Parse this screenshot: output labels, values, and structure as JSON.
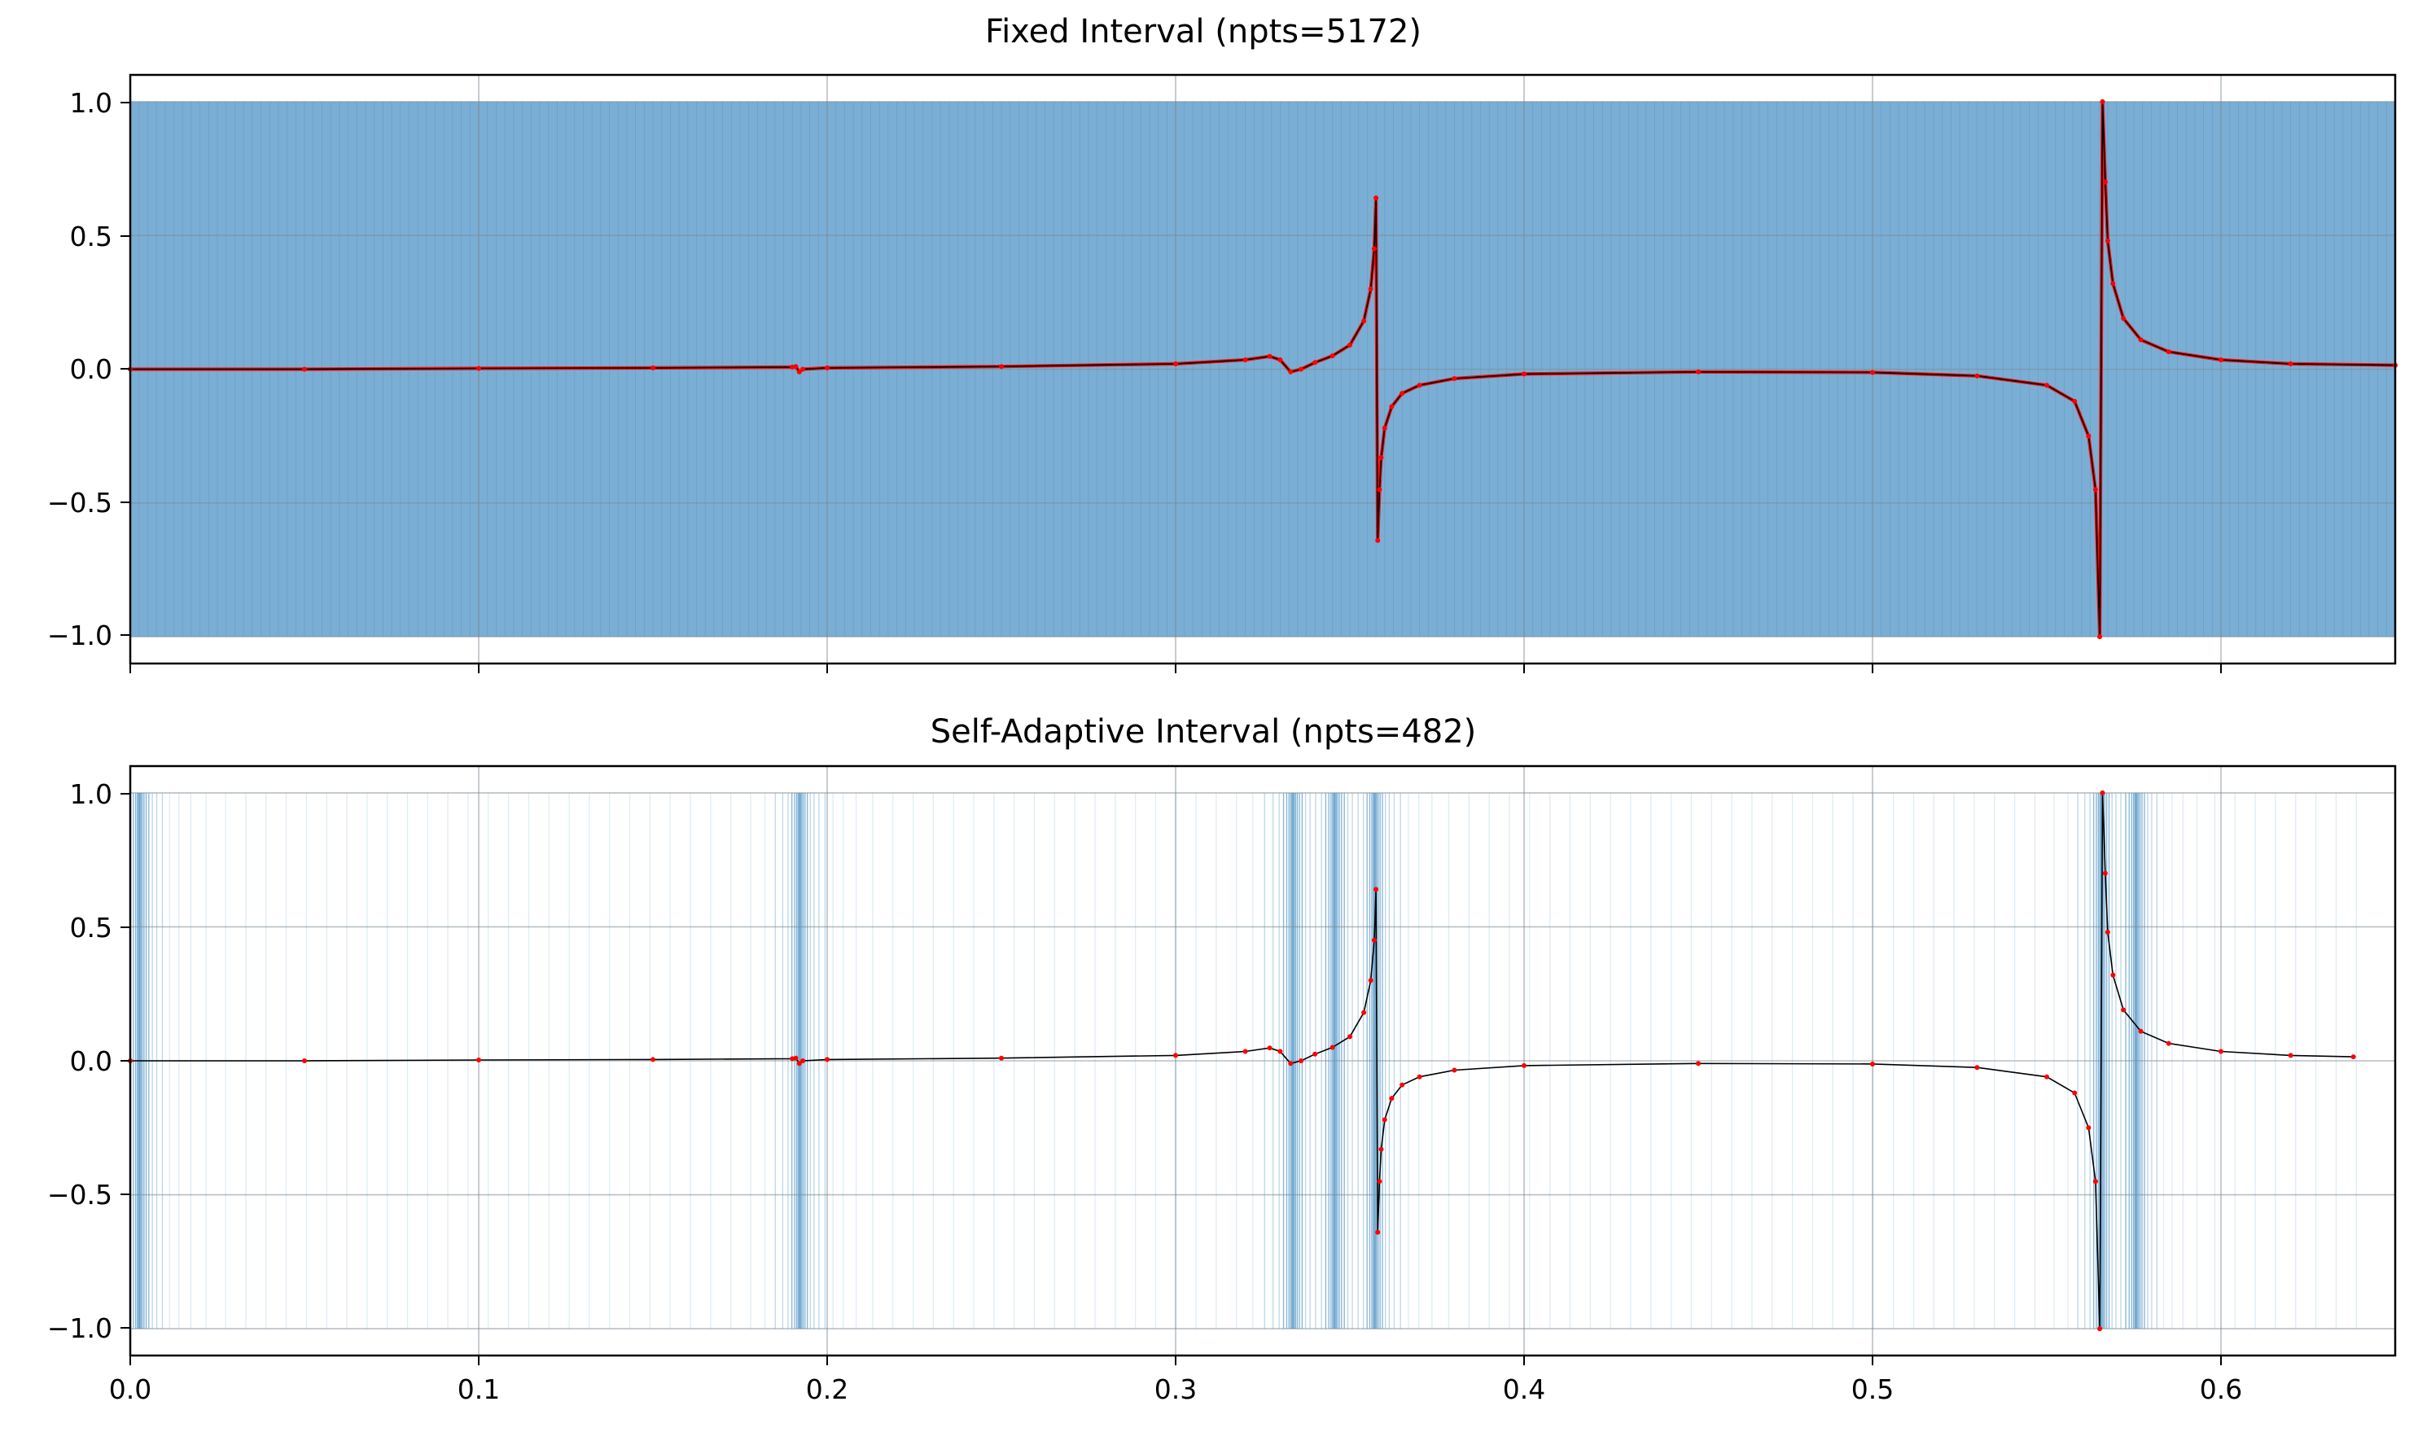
{
  "chart_data": [
    {
      "type": "line",
      "title": "Fixed Interval (npts=5172)",
      "xlim": [
        0.0,
        0.65
      ],
      "ylim": [
        -1.1,
        1.1
      ],
      "xticks": [
        0.0,
        0.1,
        0.2,
        0.3,
        0.4,
        0.5,
        0.6
      ],
      "xtick_labels": [
        "",
        "",
        "",
        "",
        "",
        "",
        ""
      ],
      "yticks": [
        1.0,
        0.5,
        0.0,
        -0.5,
        -1.0
      ],
      "ytick_labels": [
        "1.0",
        "0.5",
        "0.0",
        "−0.5",
        "−1.0"
      ],
      "grid": true,
      "interval_shading": {
        "color": "#7aaed4",
        "style": "dense-uniform",
        "y_range": [
          -1.0,
          1.0
        ]
      },
      "sampling": "uniform",
      "npts": 5172,
      "series": [
        {
          "style": "line-with-red-markers",
          "x": [
            0.0,
            0.05,
            0.1,
            0.15,
            0.19,
            0.191,
            0.192,
            0.193,
            0.2,
            0.25,
            0.3,
            0.32,
            0.327,
            0.33,
            0.333,
            0.336,
            0.34,
            0.345,
            0.35,
            0.354,
            0.356,
            0.357,
            0.3575,
            0.358,
            0.3585,
            0.359,
            0.36,
            0.362,
            0.365,
            0.37,
            0.38,
            0.4,
            0.45,
            0.5,
            0.53,
            0.55,
            0.558,
            0.562,
            0.564,
            0.5652,
            0.566,
            0.5668,
            0.5675,
            0.569,
            0.572,
            0.577,
            0.585,
            0.6,
            0.62,
            0.65
          ],
          "y": [
            0.0,
            0.0,
            0.003,
            0.005,
            0.008,
            0.01,
            -0.01,
            0.0,
            0.005,
            0.01,
            0.02,
            0.035,
            0.048,
            0.035,
            -0.01,
            0.0,
            0.025,
            0.05,
            0.09,
            0.18,
            0.3,
            0.45,
            0.64,
            -0.64,
            -0.45,
            -0.33,
            -0.22,
            -0.14,
            -0.09,
            -0.06,
            -0.035,
            -0.018,
            -0.01,
            -0.012,
            -0.025,
            -0.06,
            -0.12,
            -0.25,
            -0.45,
            -1.0,
            1.0,
            0.7,
            0.48,
            0.32,
            0.19,
            0.11,
            0.065,
            0.035,
            0.02,
            0.015
          ]
        }
      ]
    },
    {
      "type": "line",
      "title": "Self-Adaptive Interval (npts=482)",
      "xlim": [
        0.0,
        0.65
      ],
      "ylim": [
        -1.1,
        1.1
      ],
      "xticks": [
        0.0,
        0.1,
        0.2,
        0.3,
        0.4,
        0.5,
        0.6
      ],
      "xtick_labels": [
        "0.0",
        "0.1",
        "0.2",
        "0.3",
        "0.4",
        "0.5",
        "0.6"
      ],
      "yticks": [
        1.0,
        0.5,
        0.0,
        -0.5,
        -1.0
      ],
      "ytick_labels": [
        "1.0",
        "0.5",
        "0.0",
        "−0.5",
        "−1.0"
      ],
      "grid": true,
      "interval_shading": {
        "color": "#1f77b4",
        "style": "adaptive",
        "y_range": [
          -1.0,
          1.0
        ]
      },
      "sampling": "adaptive",
      "npts": 482,
      "dense_regions": [
        0.0025,
        0.192,
        0.3335,
        0.3455,
        0.357,
        0.5655,
        0.5755
      ],
      "series": [
        {
          "style": "line-with-red-markers",
          "x": [
            0.0,
            0.05,
            0.1,
            0.15,
            0.19,
            0.191,
            0.192,
            0.193,
            0.2,
            0.25,
            0.3,
            0.32,
            0.327,
            0.33,
            0.333,
            0.336,
            0.34,
            0.345,
            0.35,
            0.354,
            0.356,
            0.357,
            0.3575,
            0.358,
            0.3585,
            0.359,
            0.36,
            0.362,
            0.365,
            0.37,
            0.38,
            0.4,
            0.45,
            0.5,
            0.53,
            0.55,
            0.558,
            0.562,
            0.564,
            0.5652,
            0.566,
            0.5668,
            0.5675,
            0.569,
            0.572,
            0.577,
            0.585,
            0.6,
            0.62,
            0.638
          ],
          "y": [
            0.0,
            0.0,
            0.003,
            0.005,
            0.008,
            0.01,
            -0.01,
            0.0,
            0.005,
            0.01,
            0.02,
            0.035,
            0.048,
            0.035,
            -0.01,
            0.0,
            0.025,
            0.05,
            0.09,
            0.18,
            0.3,
            0.45,
            0.64,
            -0.64,
            -0.45,
            -0.33,
            -0.22,
            -0.14,
            -0.09,
            -0.06,
            -0.035,
            -0.018,
            -0.01,
            -0.012,
            -0.025,
            -0.06,
            -0.12,
            -0.25,
            -0.45,
            -1.0,
            1.0,
            0.7,
            0.48,
            0.32,
            0.19,
            0.11,
            0.065,
            0.035,
            0.02,
            0.015
          ]
        }
      ]
    }
  ]
}
